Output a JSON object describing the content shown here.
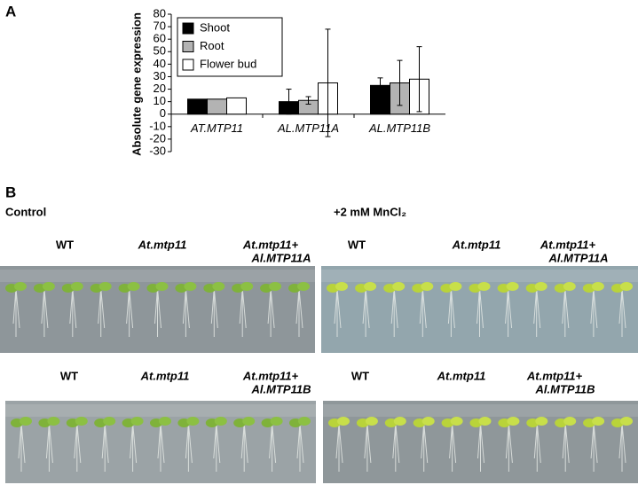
{
  "chart_data": {
    "type": "bar",
    "panel_label": "A",
    "ylabel": "Absolute gene expression",
    "categories": [
      "AT.MTP11",
      "AL.MTP11A",
      "AL.MTP11B"
    ],
    "series": [
      {
        "name": "Shoot",
        "color": "#000000",
        "values": [
          12,
          10,
          23
        ],
        "errors": [
          null,
          10,
          6
        ]
      },
      {
        "name": "Root",
        "color": "#b3b3b3",
        "values": [
          12,
          11,
          25
        ],
        "errors": [
          null,
          3,
          18
        ]
      },
      {
        "name": "Flower bud",
        "color": "#ffffff",
        "values": [
          13,
          25,
          28
        ],
        "errors": [
          null,
          43,
          26
        ]
      }
    ],
    "ylim": [
      -30,
      80
    ],
    "yticks": [
      -30,
      -20,
      -10,
      0,
      10,
      20,
      30,
      40,
      50,
      60,
      70,
      80
    ]
  },
  "panel_b": {
    "label": "B",
    "conditions": [
      "Control",
      "+2 mM MnCl₂"
    ],
    "photos": [
      {
        "genotypes": [
          [
            "WT"
          ],
          [
            "At.mtp11"
          ],
          [
            "At.mtp11+",
            "Al.MTP11A"
          ]
        ]
      },
      {
        "genotypes": [
          [
            "WT"
          ],
          [
            "At.mtp11"
          ],
          [
            "At.mtp11+",
            "Al.MTP11A"
          ]
        ]
      },
      {
        "genotypes": [
          [
            "WT"
          ],
          [
            "At.mtp11"
          ],
          [
            "At.mtp11+",
            "Al.MTP11B"
          ]
        ]
      },
      {
        "genotypes": [
          [
            "WT"
          ],
          [
            "At.mtp11"
          ],
          [
            "At.mtp11+",
            "Al.MTP11B"
          ]
        ]
      }
    ]
  }
}
